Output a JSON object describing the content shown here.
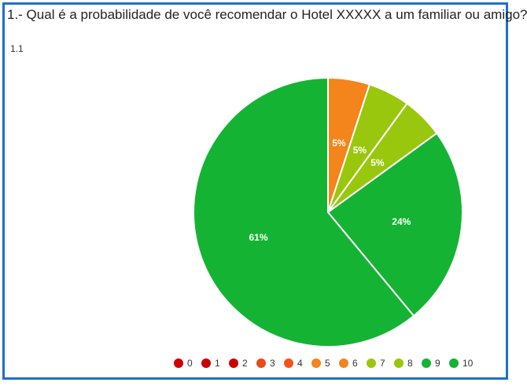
{
  "question": {
    "title": "1.- Qual é a probabilidade de você recomendar o Hotel XXXXX a um familiar ou amigo?",
    "subtitle": "1.1"
  },
  "chart_data": {
    "type": "pie",
    "title": "1.- Qual é a probabilidade de você recomendar o Hotel XXXXX a um familiar ou amigo?",
    "subtitle": "1.1",
    "legend_position": "bottom-right",
    "categories": [
      "0",
      "1",
      "2",
      "3",
      "4",
      "5",
      "6",
      "7",
      "8",
      "9",
      "10"
    ],
    "colors": [
      "#cc0000",
      "#cc0000",
      "#cc0000",
      "#e64a19",
      "#f4511e",
      "#f4841c",
      "#f4841c",
      "#99c70d",
      "#99c70d",
      "#15b333",
      "#15b333"
    ],
    "values": [
      0,
      0,
      0,
      0,
      0,
      5,
      0,
      5,
      5,
      24,
      61
    ],
    "labels": [
      "",
      "",
      "",
      "",
      "",
      "5%",
      "",
      "5%",
      "5%",
      "24%",
      "61%"
    ]
  }
}
